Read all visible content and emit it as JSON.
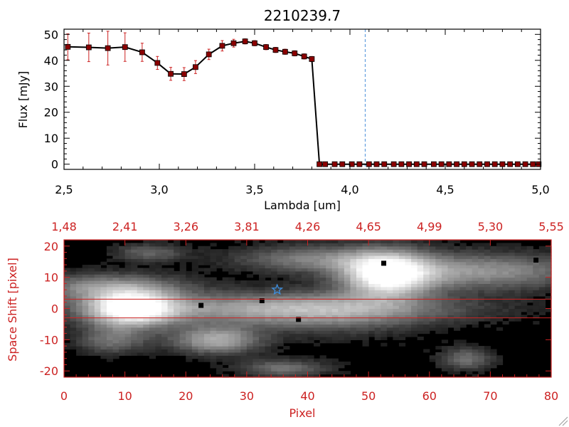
{
  "chart_data": [
    {
      "type": "line",
      "title": "2210239.7",
      "xlabel": "Lambda [um]",
      "ylabel": "Flux [mJy]",
      "xlim": [
        2.5,
        5.0
      ],
      "ylim": [
        -2,
        52
      ],
      "xticks": [
        "2.5",
        "3.0",
        "3.5",
        "4.0",
        "4.5",
        "5.0"
      ],
      "yticks": [
        "0",
        "10",
        "20",
        "30",
        "40",
        "50"
      ],
      "x": [
        2.52,
        2.63,
        2.73,
        2.82,
        2.91,
        2.99,
        3.06,
        3.13,
        3.19,
        3.26,
        3.33,
        3.39,
        3.45,
        3.5,
        3.56,
        3.61,
        3.66,
        3.71,
        3.76,
        3.8,
        3.84,
        3.87,
        3.92,
        3.96,
        4.01,
        4.05,
        4.1,
        4.14,
        4.18,
        4.23,
        4.27,
        4.31,
        4.35,
        4.39,
        4.44,
        4.48,
        4.52,
        4.56,
        4.6,
        4.64,
        4.68,
        4.72,
        4.76,
        4.8,
        4.84,
        4.88,
        4.92,
        4.96,
        4.99
      ],
      "y": [
        45.2,
        45.0,
        44.7,
        45.1,
        43.1,
        39.0,
        34.8,
        34.7,
        37.4,
        42.3,
        45.6,
        46.6,
        47.3,
        46.6,
        45.1,
        44.0,
        43.3,
        42.7,
        41.5,
        40.5,
        0,
        0,
        0,
        0,
        0,
        0,
        0,
        0,
        0,
        0,
        0,
        0,
        0,
        0,
        0,
        0,
        0,
        0,
        0,
        0,
        0,
        0,
        0,
        0,
        0,
        0,
        0,
        0,
        0
      ],
      "yerr": [
        5.0,
        5.5,
        6.5,
        5.5,
        3.5,
        2.5,
        2.5,
        2.5,
        2.5,
        2.0,
        2.0,
        1.5,
        1.0,
        1.0,
        1.0,
        1.0,
        1.0,
        1.0,
        1.0,
        1.0,
        0,
        0,
        0,
        0,
        0,
        0,
        0,
        0,
        0,
        0,
        0,
        0,
        0,
        0,
        0,
        0,
        0,
        0,
        0,
        0,
        0,
        0,
        0,
        0,
        0,
        0,
        0,
        0,
        0
      ],
      "vline_x": 4.08,
      "line_color": "#000000",
      "marker_color": "#8b0000",
      "errorbar_color": "#cc2222",
      "vline_color": "#4a90d9"
    },
    {
      "type": "heatmap",
      "xlabel": "Pixel",
      "ylabel": "Space Shift [pixel]",
      "xlim": [
        0,
        80
      ],
      "ylim": [
        -22,
        22
      ],
      "xticks": [
        "0",
        "10",
        "20",
        "30",
        "40",
        "50",
        "60",
        "70",
        "80"
      ],
      "yticks": [
        "-20",
        "-10",
        "0",
        "10",
        "20"
      ],
      "top_axis_ticks": [
        "1.48",
        "2.41",
        "3.26",
        "3.81",
        "4.26",
        "4.65",
        "4.99",
        "5.30",
        "5.55"
      ],
      "extraction_window": [
        -3,
        3
      ],
      "blobs": [
        {
          "x": 11,
          "y": 0,
          "sx": 5,
          "sy": 4,
          "amp": 1.0
        },
        {
          "x": 35,
          "y": 0,
          "sx": 20,
          "sy": 3.5,
          "amp": 0.55
        },
        {
          "x": 7,
          "y": 7,
          "sx": 9,
          "sy": 3,
          "amp": 0.45
        },
        {
          "x": 53,
          "y": 11,
          "sx": 5,
          "sy": 5,
          "amp": 1.0
        },
        {
          "x": 68,
          "y": 12,
          "sx": 12,
          "sy": 4,
          "amp": 0.5
        },
        {
          "x": 25,
          "y": -10,
          "sx": 5,
          "sy": 3,
          "amp": 0.6
        },
        {
          "x": 8,
          "y": -10,
          "sx": 4,
          "sy": 3,
          "amp": 0.35
        },
        {
          "x": 41,
          "y": 16,
          "sx": 9,
          "sy": 3,
          "amp": 0.4
        },
        {
          "x": 66,
          "y": -16,
          "sx": 3,
          "sy": 2.5,
          "amp": 0.35
        },
        {
          "x": 36,
          "y": -19,
          "sx": 5,
          "sy": 2,
          "amp": 0.35
        },
        {
          "x": 14,
          "y": 18,
          "sx": 4,
          "sy": 2,
          "amp": 0.3
        },
        {
          "x": 45,
          "y": -2,
          "sx": 10,
          "sy": 5,
          "amp": 0.2
        }
      ],
      "bad_pixels": [
        [
          22.5,
          1
        ],
        [
          32.5,
          2.5
        ],
        [
          38.5,
          -3.5
        ],
        [
          52.5,
          14.5
        ],
        [
          77.5,
          15.5
        ]
      ],
      "star": [
        35,
        6
      ],
      "axis_color": "#cc2222",
      "star_color": "#3d8fe0"
    }
  ]
}
